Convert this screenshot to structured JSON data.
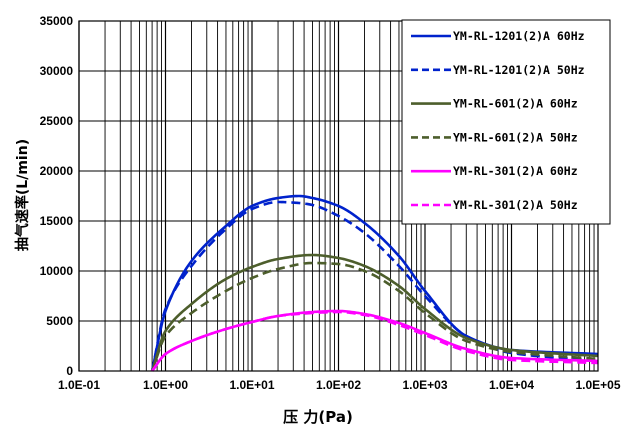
{
  "chart_data": {
    "type": "line",
    "xlabel": "压 力(Pa)",
    "ylabel": "抽气速率(L/min)",
    "xscale": "log",
    "xlim": [
      0.1,
      100000
    ],
    "ylim": [
      0,
      35000
    ],
    "xticks": [
      "1.0E-01",
      "1.0E+00",
      "1.0E+01",
      "1.0E+02",
      "1.0E+03",
      "1.0E+04",
      "1.0E+05"
    ],
    "yticks": [
      "0",
      "5000",
      "10000",
      "15000",
      "20000",
      "25000",
      "30000",
      "35000"
    ],
    "grid": true,
    "legend_position": "top-right",
    "series": [
      {
        "name": "YM-RL-1201(2)A  60Hz",
        "color": "#0022cc",
        "dash": "solid",
        "x": [
          0.7,
          1,
          2,
          5,
          10,
          20,
          35,
          50,
          100,
          200,
          500,
          1000,
          3000,
          10000,
          100000
        ],
        "y": [
          0,
          6000,
          11000,
          14500,
          16500,
          17300,
          17500,
          17300,
          16500,
          14800,
          11500,
          8000,
          3500,
          2100,
          1700
        ]
      },
      {
        "name": "YM-RL-1201(2)A  50Hz",
        "color": "#0022cc",
        "dash": "dashed",
        "x": [
          0.7,
          1,
          2,
          5,
          10,
          20,
          35,
          50,
          100,
          200,
          500,
          1000,
          3000,
          10000,
          100000
        ],
        "y": [
          0,
          6200,
          10500,
          14200,
          16200,
          16900,
          16800,
          16600,
          15500,
          13800,
          10500,
          7500,
          3500,
          1800,
          1000
        ]
      },
      {
        "name": "YM-RL-601(2)A  60Hz",
        "color": "#4d5e2c",
        "dash": "solid",
        "x": [
          0.7,
          1,
          2,
          5,
          10,
          20,
          50,
          100,
          200,
          500,
          1000,
          3000,
          10000,
          100000
        ],
        "y": [
          0,
          4000,
          6700,
          9200,
          10400,
          11200,
          11600,
          11300,
          10500,
          8500,
          6200,
          3300,
          2100,
          1500
        ]
      },
      {
        "name": "YM-RL-601(2)A  50Hz",
        "color": "#4d5e2c",
        "dash": "dashed",
        "x": [
          0.7,
          1,
          2,
          5,
          10,
          20,
          50,
          100,
          200,
          500,
          1000,
          3000,
          10000,
          100000
        ],
        "y": [
          0,
          3500,
          5800,
          8000,
          9300,
          10200,
          10800,
          10700,
          10000,
          8000,
          5800,
          3000,
          1900,
          1200
        ]
      },
      {
        "name": "YM-RL-301(2)A  60Hz",
        "color": "#ff00ff",
        "dash": "solid",
        "x": [
          0.7,
          1,
          2,
          5,
          10,
          20,
          50,
          100,
          200,
          500,
          1000,
          3000,
          10000,
          100000
        ],
        "y": [
          0,
          1700,
          3000,
          4200,
          4900,
          5500,
          5900,
          6000,
          5700,
          4800,
          3800,
          2200,
          1300,
          1000
        ]
      },
      {
        "name": "YM-RL-301(2)A  50Hz",
        "color": "#ff00ff",
        "dash": "dashed",
        "x": [
          0.7,
          1,
          2,
          5,
          10,
          20,
          50,
          100,
          200,
          500,
          1000,
          3000,
          10000,
          100000
        ],
        "y": [
          0,
          1700,
          3000,
          4200,
          4900,
          5500,
          5800,
          5900,
          5600,
          4600,
          3600,
          2000,
          1100,
          800
        ]
      }
    ]
  }
}
